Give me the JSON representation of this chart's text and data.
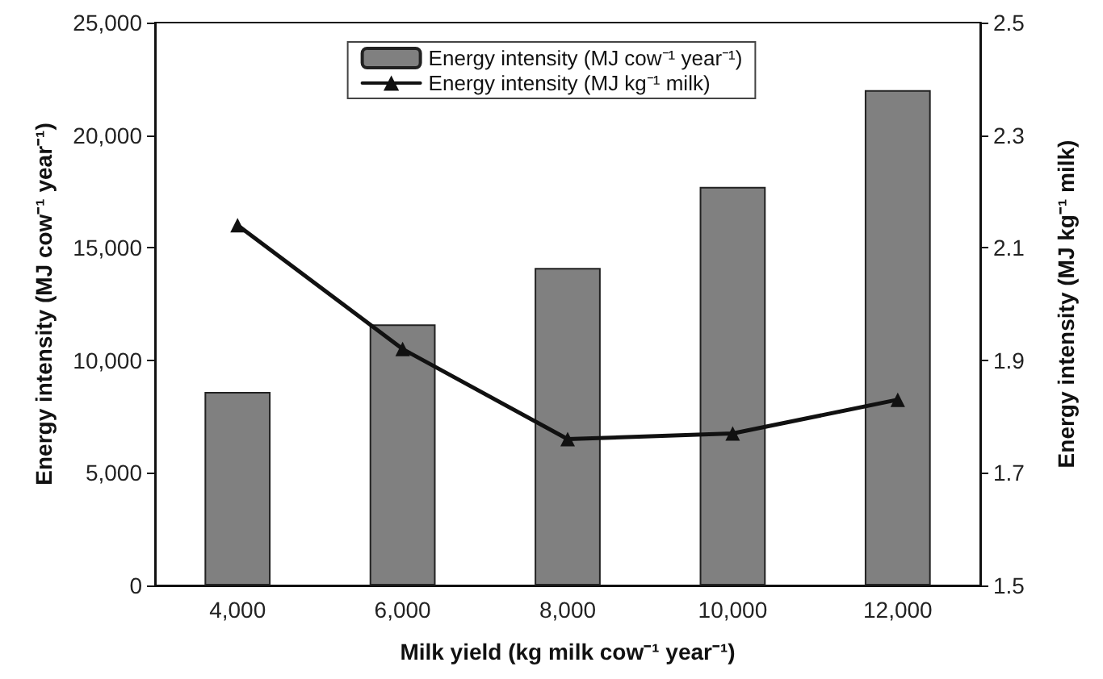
{
  "chart_data": {
    "type": "bar",
    "xlabel": "Milk yield (kg milk cow⁻¹ year⁻¹)",
    "ylabel": "Energy intensity (MJ cow⁻¹ year⁻¹)",
    "y2label": "Energy intensity (MJ kg⁻¹ milk)",
    "categories": [
      "4,000",
      "6,000",
      "8,000",
      "10,000",
      "12,000"
    ],
    "series": [
      {
        "name": "Energy intensity (MJ cow⁻¹ year⁻¹)",
        "color": "#808080",
        "values": [
          8600,
          11600,
          14100,
          17700,
          22000
        ]
      },
      {
        "name": "Energy intensity (MJ kg⁻¹ milk)",
        "type": "line",
        "axis": "y2",
        "color": "#111111",
        "marker": "triangle",
        "line_style": "solid",
        "values": [
          2.14,
          1.92,
          1.76,
          1.77,
          1.83
        ]
      }
    ],
    "ylim": [
      0,
      25000
    ],
    "yticks": [
      0,
      {
        "value": 5000,
        "label": "5,000"
      },
      {
        "value": 10000,
        "label": "10,000"
      },
      {
        "value": 15000,
        "label": "15,000"
      },
      {
        "value": 20000,
        "label": "20,000"
      },
      {
        "value": 25000,
        "label": "25,000"
      }
    ],
    "y2lim": [
      1.5,
      2.5
    ],
    "y2ticks": [
      1.5,
      1.7,
      1.9,
      2.1,
      2.3,
      2.5
    ],
    "grid": false,
    "legend": "top"
  }
}
